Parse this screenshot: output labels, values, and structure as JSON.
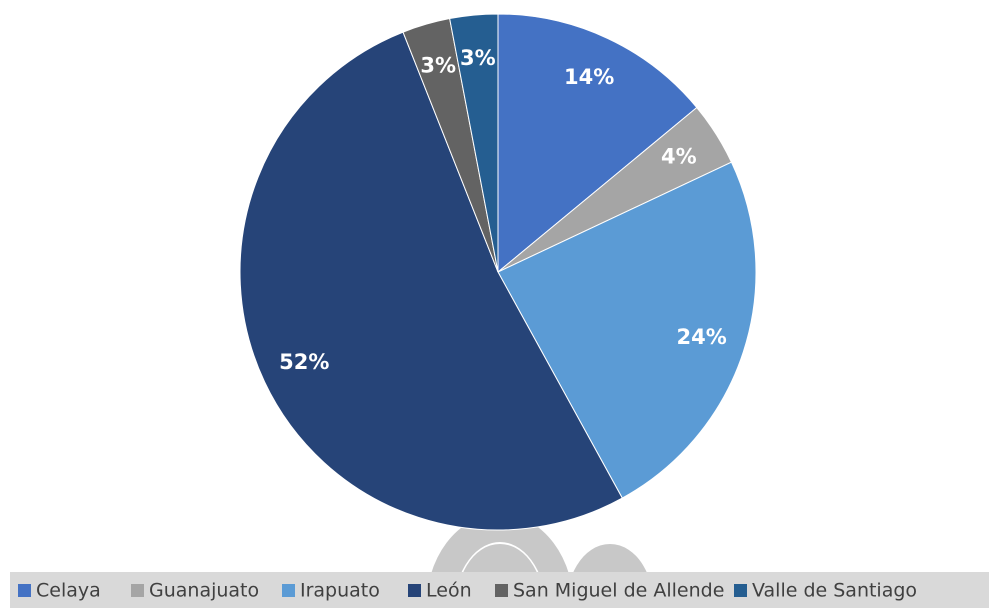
{
  "chart_data": {
    "type": "pie",
    "categories": [
      "Celaya",
      "Guanajuato",
      "Irapuato",
      "León",
      "San Miguel de Allende",
      "Valle de Santiago"
    ],
    "values": [
      14,
      4,
      24,
      52,
      3,
      3
    ],
    "value_labels": [
      "14%",
      "4%",
      "24%",
      "52%",
      "3%",
      "3%"
    ],
    "colors": [
      "#4472c4",
      "#a5a5a5",
      "#5b9bd5",
      "#264478",
      "#636363",
      "#255e91"
    ],
    "legend": "bottom"
  }
}
